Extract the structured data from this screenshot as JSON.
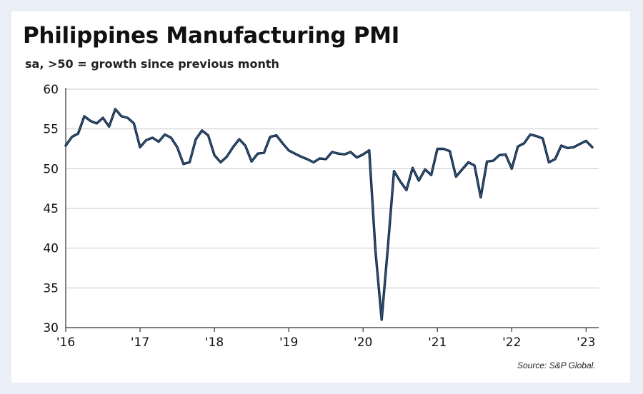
{
  "chart_data": {
    "type": "line",
    "title": "Philippines Manufacturing PMI",
    "subtitle": "sa, >50 = growth since previous month",
    "source": "Source: S&P Global.",
    "ylim": [
      30,
      60
    ],
    "y_ticks": [
      30,
      35,
      40,
      45,
      50,
      55,
      60
    ],
    "y_tick_labels": [
      "30",
      "35",
      "40",
      "45",
      "50",
      "55",
      "60"
    ],
    "xlim": [
      2016.0,
      2023.17
    ],
    "x_ticks": [
      2016,
      2017,
      2018,
      2019,
      2020,
      2021,
      2022,
      2023
    ],
    "x_tick_labels": [
      "'16",
      "'17",
      "'18",
      "'19",
      "'20",
      "'21",
      "'22",
      "'23"
    ],
    "grid": "horizontal",
    "line_color": "#0f2a4a",
    "series": [
      {
        "x": [
          "2016-01",
          "2016-02",
          "2016-03",
          "2016-04",
          "2016-05",
          "2016-06",
          "2016-07",
          "2016-08",
          "2016-09",
          "2016-10",
          "2016-11",
          "2016-12",
          "2017-01",
          "2017-02",
          "2017-03",
          "2017-04",
          "2017-05",
          "2017-06",
          "2017-07",
          "2017-08",
          "2017-09",
          "2017-10",
          "2017-11",
          "2017-12",
          "2018-01",
          "2018-02",
          "2018-03",
          "2018-04",
          "2018-05",
          "2018-06",
          "2018-07",
          "2018-08",
          "2018-09",
          "2018-10",
          "2018-11",
          "2018-12",
          "2019-01",
          "2019-02",
          "2019-03",
          "2019-04",
          "2019-05",
          "2019-06",
          "2019-07",
          "2019-08",
          "2019-09",
          "2019-10",
          "2019-11",
          "2019-12",
          "2020-01",
          "2020-02",
          "2020-03",
          "2020-04",
          "2020-05",
          "2020-06",
          "2020-07",
          "2020-08",
          "2020-09",
          "2020-10",
          "2020-11",
          "2020-12",
          "2021-01",
          "2021-02",
          "2021-03",
          "2021-04",
          "2021-05",
          "2021-06",
          "2021-07",
          "2021-08",
          "2021-09",
          "2021-10",
          "2021-11",
          "2021-12",
          "2022-01",
          "2022-02",
          "2022-03",
          "2022-04",
          "2022-05",
          "2022-06",
          "2022-07",
          "2022-08",
          "2022-09",
          "2022-10",
          "2022-11",
          "2022-12",
          "2023-01",
          "2023-02"
        ],
        "values": [
          52.9,
          54.0,
          54.4,
          56.6,
          56.0,
          55.7,
          56.4,
          55.3,
          57.5,
          56.6,
          56.4,
          55.7,
          52.7,
          53.6,
          53.9,
          53.4,
          54.3,
          53.9,
          52.7,
          50.6,
          50.8,
          53.7,
          54.8,
          54.2,
          51.7,
          50.8,
          51.5,
          52.7,
          53.7,
          52.9,
          50.9,
          51.9,
          52.0,
          54.0,
          54.2,
          53.2,
          52.3,
          51.9,
          51.5,
          51.2,
          50.8,
          51.3,
          51.2,
          52.1,
          51.9,
          51.8,
          52.1,
          51.4,
          51.8,
          52.3,
          39.7,
          31.0,
          40.1,
          49.7,
          48.4,
          47.3,
          50.1,
          48.5,
          49.9,
          49.2,
          52.5,
          52.5,
          52.2,
          49.0,
          49.9,
          50.8,
          50.4,
          46.4,
          50.9,
          51.0,
          51.7,
          51.8,
          50.0,
          52.8,
          53.2,
          54.3,
          54.1,
          53.8,
          50.8,
          51.2,
          52.9,
          52.6,
          52.7,
          53.1,
          53.5,
          52.7
        ]
      }
    ]
  }
}
